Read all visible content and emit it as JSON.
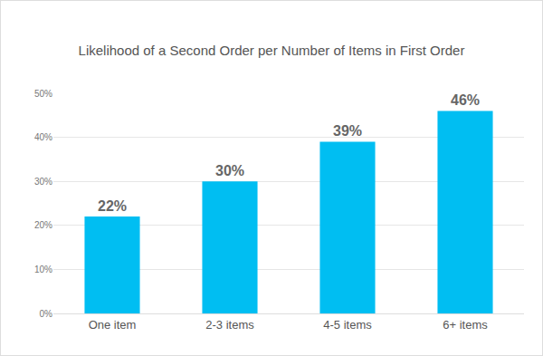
{
  "chart_data": {
    "type": "bar",
    "title": "Likelihood of a Second Order per Number of Items in First Order",
    "categories": [
      "One item",
      "2-3 items",
      "4-5 items",
      "6+ items"
    ],
    "values": [
      22,
      30,
      39,
      46
    ],
    "value_labels": [
      "22%",
      "30%",
      "39%",
      "46%"
    ],
    "data_labels": true,
    "color": "#00bef2",
    "ylim": [
      0,
      50
    ],
    "yticks": [
      {
        "value": 0,
        "label": "0%"
      },
      {
        "value": 10,
        "label": "10%"
      },
      {
        "value": 20,
        "label": "20%"
      },
      {
        "value": 30,
        "label": "30%"
      },
      {
        "value": 40,
        "label": "40%"
      },
      {
        "value": 50,
        "label": "50%"
      }
    ],
    "grid": true
  }
}
